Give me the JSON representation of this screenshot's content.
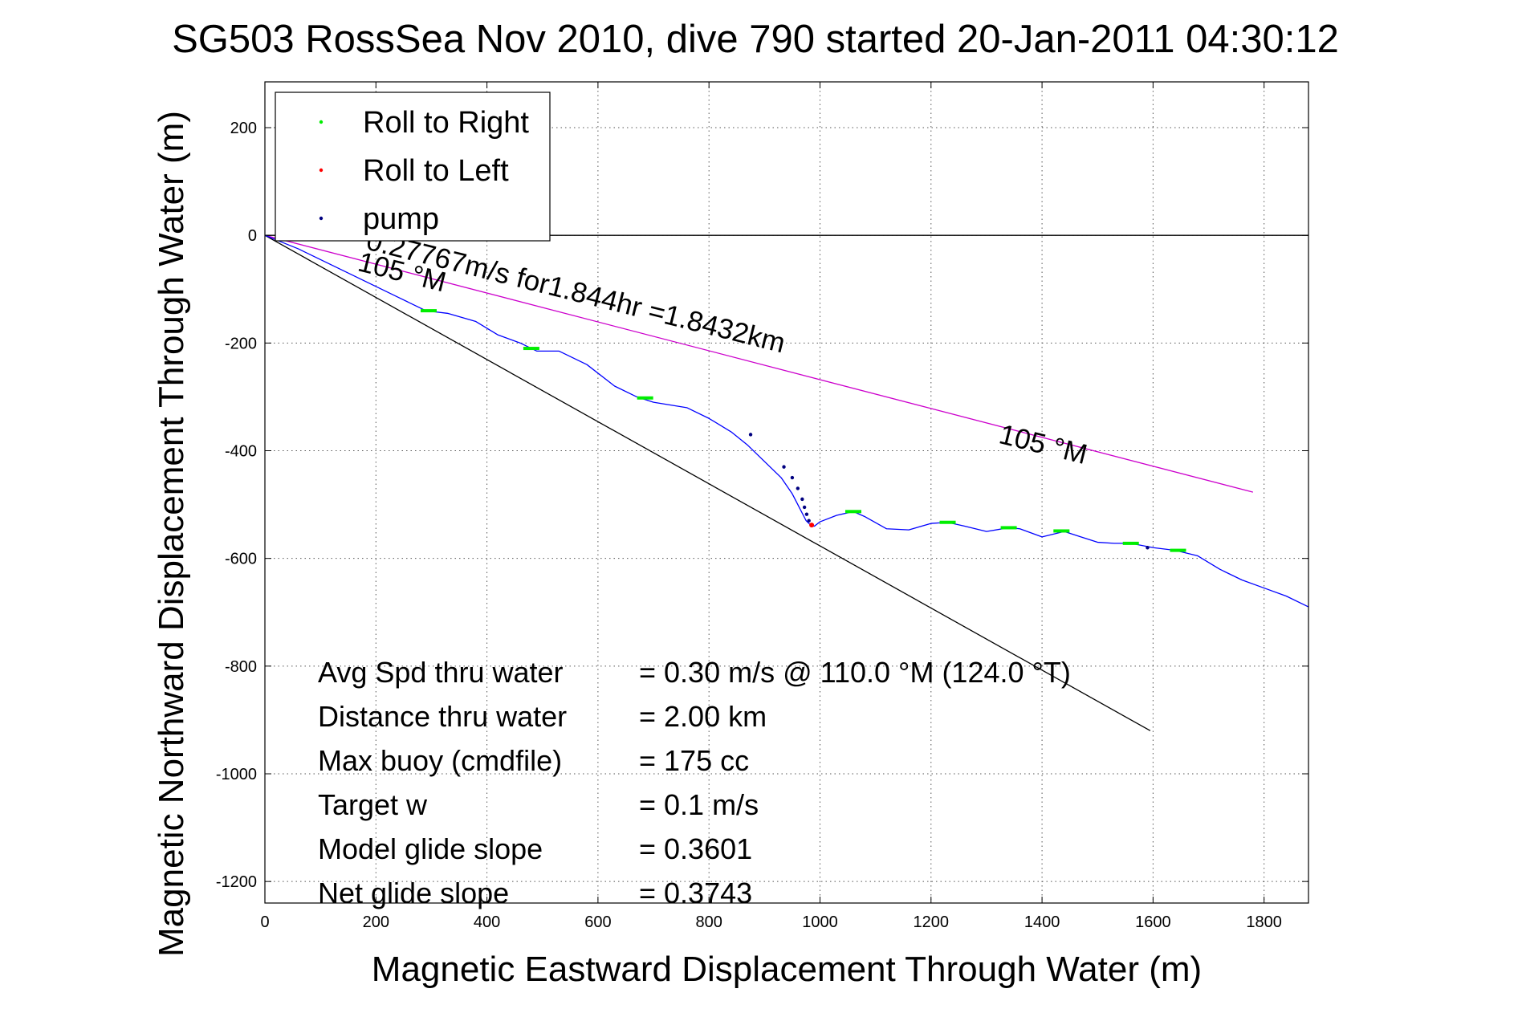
{
  "chart_data": {
    "type": "line",
    "title": "SG503 RossSea Nov 2010, dive 790 started 20-Jan-2011 04:30:12",
    "xlabel": "Magnetic Eastward Displacement Through Water (m)",
    "ylabel": "Magnetic Northward Displacement Through Water (m)",
    "xlim": [
      0,
      1880
    ],
    "ylim": [
      -1240,
      285
    ],
    "xticks": [
      0,
      200,
      400,
      600,
      800,
      1000,
      1200,
      1400,
      1600,
      1800
    ],
    "yticks": [
      200,
      0,
      -200,
      -400,
      -600,
      -800,
      -1000,
      -1200
    ],
    "grid": true,
    "legend_position": "top-left",
    "legend": [
      {
        "label": "Roll to Right",
        "color": "#00ee00",
        "marker": "dot"
      },
      {
        "label": "Roll to Left",
        "color": "#ff0000",
        "marker": "dot"
      },
      {
        "label": "pump",
        "color": "#000080",
        "marker": "dot"
      }
    ],
    "series": [
      {
        "color": "#0000ff",
        "x": [
          0,
          60,
          120,
          180,
          240,
          290,
          330,
          380,
          420,
          460,
          490,
          530,
          580,
          630,
          670,
          700,
          760,
          800,
          840,
          870,
          900,
          930,
          950,
          960,
          965,
          970,
          975,
          980,
          985,
          990,
          1000,
          1030,
          1060,
          1080,
          1120,
          1160,
          1200,
          1230,
          1260,
          1300,
          1340,
          1360,
          1400,
          1440,
          1470,
          1500,
          1530,
          1560,
          1600,
          1640,
          1680,
          1720,
          1760,
          1800,
          1840,
          1880
        ],
        "y": [
          0,
          -25,
          -55,
          -85,
          -115,
          -140,
          -145,
          -160,
          -185,
          -200,
          -215,
          -215,
          -240,
          -280,
          -300,
          -310,
          -320,
          -340,
          -365,
          -390,
          -420,
          -450,
          -480,
          -500,
          -510,
          -520,
          -530,
          -535,
          -540,
          -540,
          -532,
          -520,
          -513,
          -522,
          -545,
          -547,
          -535,
          -533,
          -540,
          -550,
          -543,
          -545,
          -560,
          -550,
          -560,
          -570,
          -572,
          -572,
          -580,
          -585,
          -595,
          -620,
          -640,
          -655,
          -670,
          -690
        ]
      }
    ],
    "roll_right_points": [
      [
        295,
        -140
      ],
      [
        480,
        -210
      ],
      [
        685,
        -302
      ],
      [
        1060,
        -513
      ],
      [
        1230,
        -533
      ],
      [
        1340,
        -543
      ],
      [
        1435,
        -549
      ],
      [
        1560,
        -572
      ],
      [
        1645,
        -585
      ]
    ],
    "roll_left_points": [
      [
        985,
        -538
      ]
    ],
    "pump_points": [
      [
        875,
        -370
      ],
      [
        935,
        -430
      ],
      [
        950,
        -450
      ],
      [
        960,
        -470
      ],
      [
        968,
        -490
      ],
      [
        972,
        -505
      ],
      [
        976,
        -518
      ],
      [
        980,
        -530
      ],
      [
        1590,
        -580
      ]
    ],
    "lines": [
      {
        "name": "current",
        "color": "#cc00cc",
        "x": [
          0,
          1780
        ],
        "y": [
          0,
          -477
        ]
      },
      {
        "name": "heading",
        "color": "#000000",
        "x": [
          0,
          1595
        ],
        "y": [
          0,
          -920
        ]
      },
      {
        "name": "zero",
        "color": "#000000",
        "x": [
          0,
          1880
        ],
        "y": [
          0,
          0
        ]
      }
    ],
    "annotations": [
      {
        "text": "0.27767m/s for1.844hr =1.8432km",
        "x": 180,
        "y": -25,
        "angle": 14
      },
      {
        "text": "105 °M",
        "x": 165,
        "y": -65,
        "angle": 14
      },
      {
        "text": "105 °M",
        "x": 1320,
        "y": -385,
        "angle": 14
      }
    ]
  },
  "stats": [
    {
      "label": "Avg Spd thru water",
      "value": "=  0.30 m/s @ 110.0 °M (124.0 °T)"
    },
    {
      "label": "Distance thru water",
      "value": "=  2.00 km"
    },
    {
      "label": "Max buoy (cmdfile)",
      "value": "= 175 cc"
    },
    {
      "label": "Target w",
      "value": "= 0.1 m/s"
    },
    {
      "label": "Model glide slope",
      "value": "= 0.3601"
    },
    {
      "label": "Net glide slope",
      "value": "= 0.3743"
    }
  ]
}
